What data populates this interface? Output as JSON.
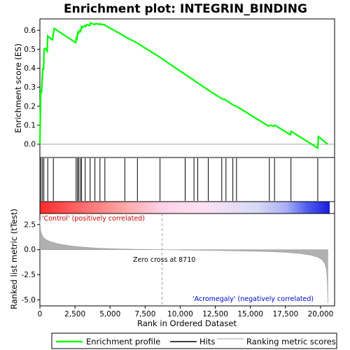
{
  "chart_data": {
    "type": "line",
    "title": "Enrichment plot: INTEGRIN_BINDING",
    "top_panel": {
      "ylabel": "Enrichment score (ES)",
      "ylim": [
        -0.07,
        0.66
      ],
      "yticks": [
        0.0,
        0.1,
        0.2,
        0.3,
        0.4,
        0.5,
        0.6
      ],
      "ytick_labels": [
        "0.0",
        "0.1",
        "0.2",
        "0.3",
        "0.4",
        "0.5",
        "0.6"
      ],
      "series": [
        {
          "name": "Enrichment profile",
          "color": "#00ff00",
          "x": [
            0,
            60,
            120,
            200,
            260,
            300,
            380,
            520,
            560,
            620,
            900,
            960,
            1020,
            1100,
            2550,
            2600,
            2650,
            2700,
            2760,
            2850,
            2900,
            2980,
            3050,
            3200,
            3250,
            3350,
            3550,
            3600,
            3700,
            3900,
            3950,
            4050,
            4250,
            4300,
            4400,
            4600,
            4650,
            4800,
            6000,
            6100,
            6900,
            7000,
            8500,
            8600,
            10300,
            10400,
            10950,
            11000,
            11200,
            12000,
            12950,
            13200,
            13700,
            13800,
            14000,
            16300,
            16400,
            16650,
            16750,
            17850,
            17900,
            19800,
            19850,
            20500
          ],
          "values": [
            0.0,
            0.28,
            0.275,
            0.4,
            0.39,
            0.5,
            0.505,
            0.49,
            0.57,
            0.565,
            0.55,
            0.58,
            0.61,
            0.605,
            0.535,
            0.56,
            0.555,
            0.59,
            0.585,
            0.6,
            0.595,
            0.62,
            0.615,
            0.625,
            0.62,
            0.63,
            0.625,
            0.64,
            0.635,
            0.63,
            0.635,
            0.635,
            0.63,
            0.635,
            0.63,
            0.63,
            0.625,
            0.62,
            0.57,
            0.565,
            0.535,
            0.53,
            0.46,
            0.455,
            0.37,
            0.365,
            0.338,
            0.335,
            0.325,
            0.285,
            0.24,
            0.235,
            0.21,
            0.205,
            0.2,
            0.095,
            0.1,
            0.095,
            0.1,
            0.05,
            0.068,
            -0.02,
            0.04,
            0.0
          ]
        }
      ]
    },
    "hits_panel": {
      "name": "Hits",
      "hit_ranks": [
        70,
        180,
        280,
        560,
        960,
        2580,
        2680,
        2760,
        2880,
        2970,
        3230,
        3580,
        3920,
        4280,
        4630,
        6050,
        6950,
        8560,
        10350,
        10980,
        11250,
        12000,
        12960,
        13260,
        13750,
        14010,
        16350,
        16720,
        17890,
        19800
      ]
    },
    "bottom_panel": {
      "name": "Ranking metric scores",
      "ylabel": "Ranked list metric (tTest)",
      "xlabel": "Rank in Ordered Dataset",
      "ylim": [
        -5.6,
        3.6
      ],
      "yticks": [
        -5.0,
        -2.5,
        0.0,
        2.5
      ],
      "ytick_labels": [
        "-5.0",
        "-2.5",
        "0.0",
        "2.5"
      ],
      "metric_profile": {
        "x": [
          0,
          50,
          150,
          300,
          500,
          800,
          1200,
          1700,
          2300,
          3000,
          4000,
          5000,
          6000,
          7000,
          8000,
          8710,
          10000,
          12000,
          14000,
          16000,
          17500,
          18500,
          19300,
          19800,
          20100,
          20300,
          20420,
          20480,
          20520
        ],
        "values": [
          2.9,
          1.9,
          1.45,
          1.15,
          0.95,
          0.78,
          0.62,
          0.48,
          0.36,
          0.26,
          0.16,
          0.1,
          0.06,
          0.03,
          0.01,
          0.0,
          -0.03,
          -0.07,
          -0.12,
          -0.18,
          -0.27,
          -0.38,
          -0.55,
          -0.75,
          -1.0,
          -1.4,
          -2.0,
          -3.2,
          -5.3
        ]
      },
      "zero_cross_rank": 8710,
      "zero_cross_label": "Zero cross at 8710",
      "positive_label": "'Control' (positively correlated)",
      "negative_label": "'Acromegaly' (negatively correlated)"
    },
    "xlim": [
      0,
      21000
    ],
    "xticks": [
      0,
      2500,
      5000,
      7500,
      10000,
      12500,
      15000,
      17500,
      20000
    ],
    "xtick_labels": [
      "0",
      "2,500",
      "5,000",
      "7,500",
      "10,000",
      "12,500",
      "15,000",
      "17,500",
      "20,000"
    ],
    "n_ranked": 20520,
    "legend": {
      "placement": "bottom",
      "items": [
        {
          "label": "Enrichment profile",
          "color": "#00ff00"
        },
        {
          "label": "Hits",
          "color": "#000000"
        },
        {
          "label": "Ranking metric scores",
          "color": "#c0c0c0"
        }
      ]
    },
    "colors": {
      "profile": "#00ff00",
      "positive_text": "#cc0000",
      "negative_text": "#0000cc",
      "metric_fill": "#b0b0b0"
    }
  }
}
